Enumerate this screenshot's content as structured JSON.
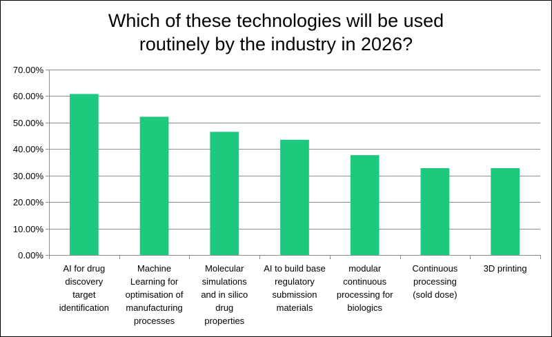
{
  "chart_data": {
    "type": "bar",
    "title_lines": [
      "Which of these technologies will be used",
      "routinely by the industry in 2026?"
    ],
    "xlabel": "",
    "ylabel": "",
    "ylim": [
      0,
      0.7
    ],
    "y_ticks": [
      0,
      0.1,
      0.2,
      0.3,
      0.4,
      0.5,
      0.6,
      0.7
    ],
    "y_tick_labels": [
      "0.00%",
      "10.00%",
      "20.00%",
      "30.00%",
      "40.00%",
      "50.00%",
      "60.00%",
      "70.00%"
    ],
    "grid": true,
    "legend": "none",
    "bar_color": "#1DC97C",
    "categories": [
      [
        "AI for drug",
        "discovery",
        "target",
        "identification"
      ],
      [
        "Machine",
        "Learning for",
        "optimisation of",
        "manufacturing",
        "processes"
      ],
      [
        "Molecular",
        "simulations",
        "and in silico",
        "drug",
        "properties"
      ],
      [
        "AI to build base",
        "regulatory",
        "submission",
        "materials"
      ],
      [
        "modular",
        "continuous",
        "processing for",
        "biologics"
      ],
      [
        "Continuous",
        "processing",
        "(sold dose)"
      ],
      [
        "3D printing"
      ]
    ],
    "values": [
      0.608,
      0.522,
      0.465,
      0.435,
      0.377,
      0.328,
      0.328
    ]
  }
}
